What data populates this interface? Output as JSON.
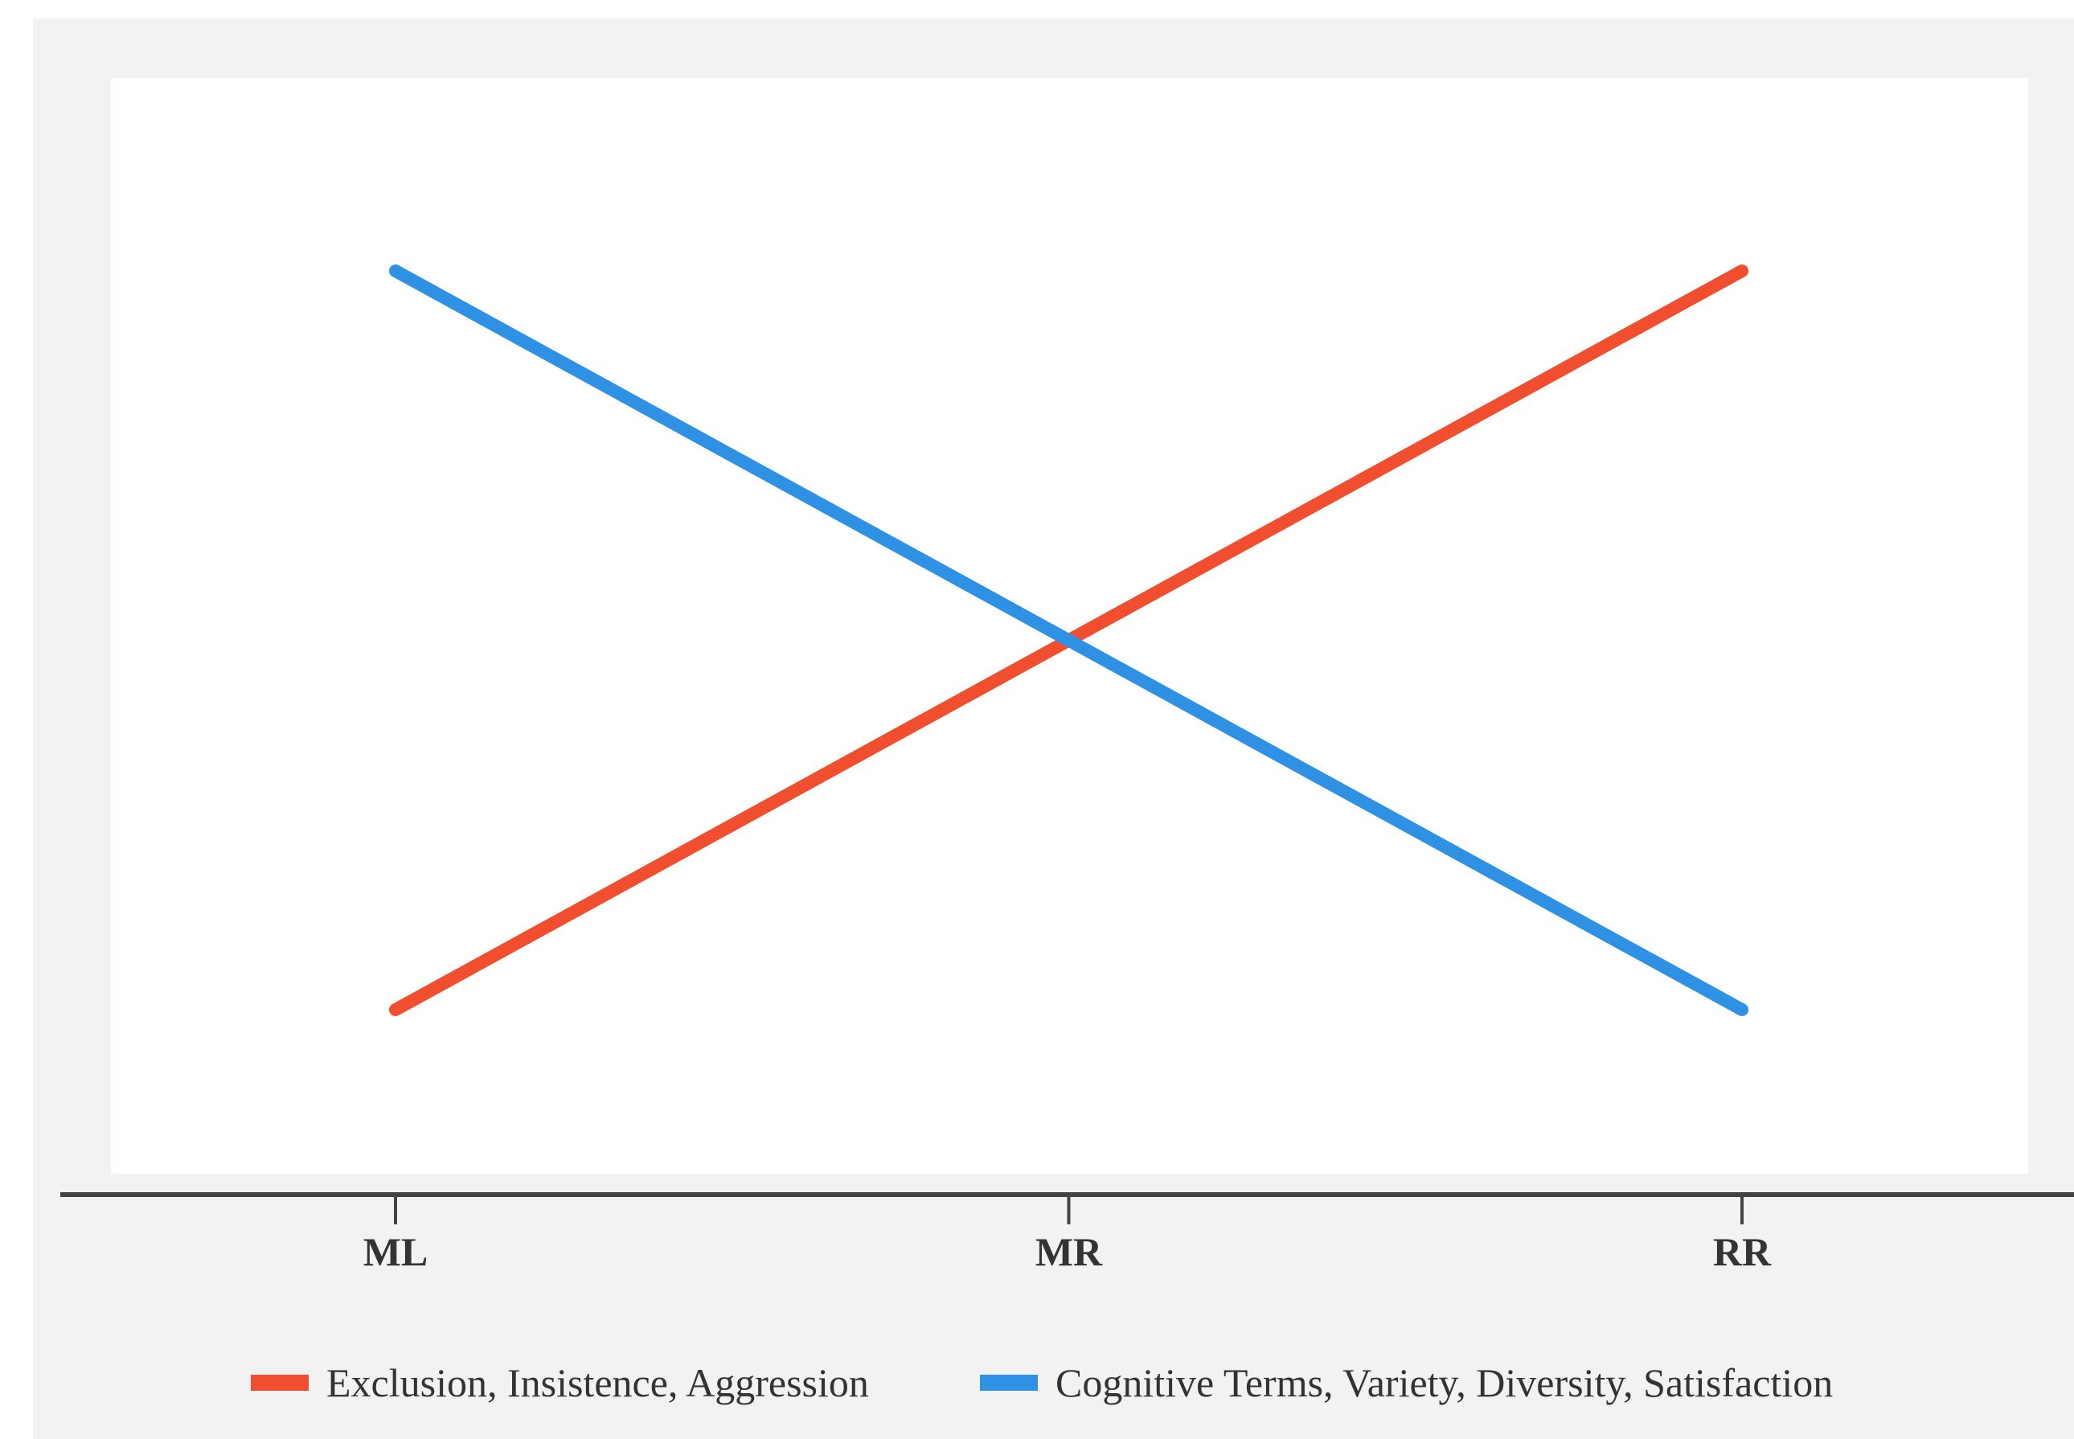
{
  "chart_data": {
    "type": "line",
    "title": "",
    "xlabel": "",
    "ylabel": "",
    "categories": [
      "ML",
      "MR",
      "RR"
    ],
    "ylim": [
      0,
      10
    ],
    "grid": false,
    "legend_position": "bottom",
    "series": [
      {
        "name": "Exclusion, Insistence, Aggression",
        "color": "#f04e2f",
        "values": [
          1,
          5,
          9
        ]
      },
      {
        "name": "Cognitive Terms, Variety, Diversity, Satisfaction",
        "color": "#2f91e3",
        "values": [
          9,
          5,
          1
        ]
      }
    ]
  },
  "colors": {
    "frame_background": "#f2f2f2",
    "plot_background": "#ffffff",
    "axis": "#444444",
    "text": "#333333"
  }
}
